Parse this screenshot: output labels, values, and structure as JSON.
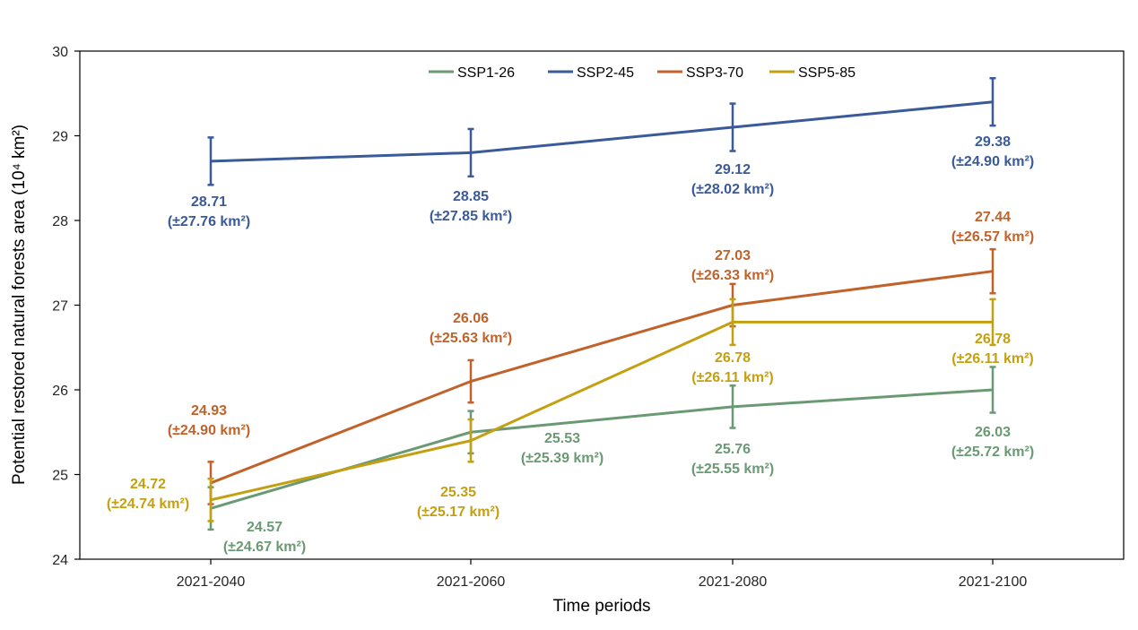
{
  "chart_data": {
    "type": "line",
    "xlabel": "Time periods",
    "ylabel": "Potential restored natural forests area (10⁴ km²)",
    "ylim": [
      24,
      30
    ],
    "yticks": [
      "24",
      "25",
      "26",
      "27",
      "28",
      "29",
      "30"
    ],
    "categories": [
      "2021-2040",
      "2021-2060",
      "2021-2080",
      "2021-2100"
    ],
    "grid": false,
    "legend_position": "top-center",
    "series": [
      {
        "name": "SSP1-26",
        "color": "#6a9a73",
        "values": [
          24.6,
          25.5,
          25.8,
          26.0
        ],
        "err": [
          0.25,
          0.25,
          0.25,
          0.27
        ],
        "labels": [
          "24.57",
          "25.53",
          "25.76",
          "26.03"
        ],
        "sublabels": [
          "(±24.67 km²)",
          "(±25.39 km²)",
          "(±25.55 km²)",
          "(±25.72 km²)"
        ]
      },
      {
        "name": "SSP2-45",
        "color": "#3a5a99",
        "values": [
          28.7,
          28.8,
          29.1,
          29.4
        ],
        "err": [
          0.28,
          0.28,
          0.28,
          0.28
        ],
        "labels": [
          "28.71",
          "28.85",
          "29.12",
          "29.38"
        ],
        "sublabels": [
          "(±27.76 km²)",
          "(±27.85 km²)",
          "(±28.02 km²)",
          "(±24.90 km²)"
        ]
      },
      {
        "name": "SSP3-70",
        "color": "#c0622a",
        "values": [
          24.9,
          26.1,
          27.0,
          27.4
        ],
        "err": [
          0.25,
          0.25,
          0.25,
          0.26
        ],
        "labels": [
          "24.93",
          "26.06",
          "27.03",
          "27.44"
        ],
        "sublabels": [
          "(±24.90 km²)",
          "(±25.63 km²)",
          "(±26.33 km²)",
          "(±26.57 km²)"
        ]
      },
      {
        "name": "SSP5-85",
        "color": "#c4a010",
        "values": [
          24.7,
          25.4,
          26.8,
          26.8
        ],
        "err": [
          0.25,
          0.25,
          0.27,
          0.27
        ],
        "labels": [
          "24.72",
          "25.35",
          "26.78",
          "26.78"
        ],
        "sublabels": [
          "(±24.74 km²)",
          "(±25.17 km²)",
          "(±26.11 km²)",
          "(±26.11 km²)"
        ]
      }
    ]
  }
}
